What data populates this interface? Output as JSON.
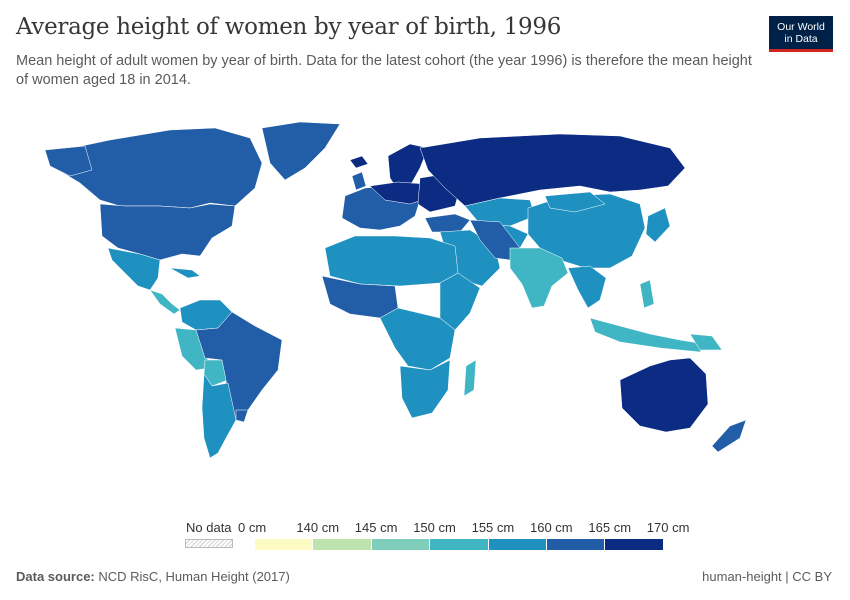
{
  "header": {
    "title": "Average height of women by year of birth, 1996",
    "subtitle": "Mean height of adult women by year of birth. Data for the latest cohort (the year 1996) is therefore the mean height of women aged 18 in 2014."
  },
  "logo": {
    "line1": "Our World",
    "line2": "in Data",
    "bg_color": "#002147",
    "accent_color": "#ce261e"
  },
  "legend": {
    "no_data_label": "No data",
    "ticks": [
      "0 cm",
      "140 cm",
      "145 cm",
      "150 cm",
      "155 cm",
      "160 cm",
      "165 cm",
      "170 cm"
    ],
    "colors": [
      "#fdfbc4",
      "#bfe3ad",
      "#7fcdbb",
      "#40b6c4",
      "#1e91c0",
      "#225ea8",
      "#0c2c84"
    ]
  },
  "footer": {
    "source_label": "Data source:",
    "source_text": "NCD RisC, Human Height (2017)",
    "slug": "human-height | CC BY"
  }
}
